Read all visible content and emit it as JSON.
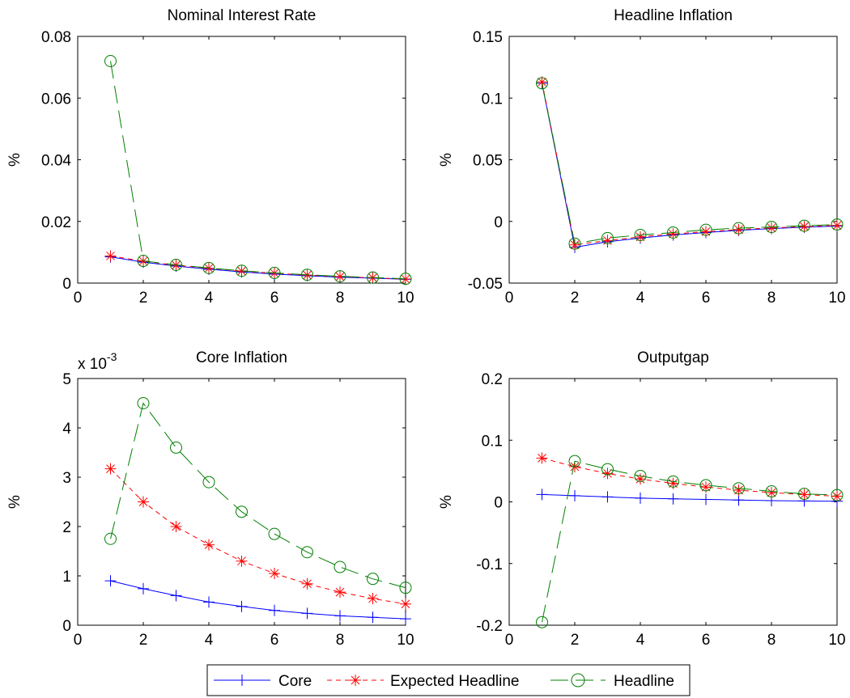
{
  "chart_data": [
    {
      "type": "line",
      "title": "Nominal Interest Rate",
      "xlabel": "",
      "ylabel": "%",
      "xlim": [
        0,
        10
      ],
      "ylim": [
        0,
        0.08
      ],
      "xticks": [
        0,
        2,
        4,
        6,
        8,
        10
      ],
      "yticks": [
        0,
        0.02,
        0.04,
        0.06,
        0.08
      ],
      "ytick_labels": [
        "0",
        "0.02",
        "0.04",
        "0.06",
        "0.08"
      ],
      "exponent_label": "",
      "x": [
        1,
        2,
        3,
        4,
        5,
        6,
        7,
        8,
        9,
        10
      ],
      "series": [
        {
          "name": "Core",
          "values": [
            0.0085,
            0.0068,
            0.0055,
            0.0045,
            0.0036,
            0.0029,
            0.0024,
            0.0019,
            0.0016,
            0.0012
          ]
        },
        {
          "name": "Expected Headline",
          "values": [
            0.0088,
            0.0071,
            0.0058,
            0.0048,
            0.0039,
            0.0032,
            0.0026,
            0.0021,
            0.0017,
            0.0013
          ]
        },
        {
          "name": "Headline",
          "values": [
            0.072,
            0.0072,
            0.0059,
            0.0049,
            0.004,
            0.0033,
            0.0027,
            0.0022,
            0.0018,
            0.0014
          ]
        }
      ]
    },
    {
      "type": "line",
      "title": "Headline Inflation",
      "xlabel": "",
      "ylabel": "%",
      "xlim": [
        0,
        10
      ],
      "ylim": [
        -0.05,
        0.15
      ],
      "xticks": [
        0,
        2,
        4,
        6,
        8,
        10
      ],
      "yticks": [
        -0.05,
        0,
        0.05,
        0.1,
        0.15
      ],
      "ytick_labels": [
        "-0.05",
        "0",
        "0.05",
        "0.1",
        "0.15"
      ],
      "exponent_label": "",
      "x": [
        1,
        2,
        3,
        4,
        5,
        6,
        7,
        8,
        9,
        10
      ],
      "series": [
        {
          "name": "Core",
          "values": [
            0.112,
            -0.021,
            -0.0165,
            -0.0135,
            -0.011,
            -0.009,
            -0.0072,
            -0.0058,
            -0.0047,
            -0.0038
          ]
        },
        {
          "name": "Expected Headline",
          "values": [
            0.113,
            -0.019,
            -0.0155,
            -0.0125,
            -0.0102,
            -0.0083,
            -0.0066,
            -0.0053,
            -0.0042,
            -0.0033
          ]
        },
        {
          "name": "Headline",
          "values": [
            0.112,
            -0.018,
            -0.0135,
            -0.011,
            -0.009,
            -0.0068,
            -0.0055,
            -0.0045,
            -0.0035,
            -0.0025
          ]
        }
      ]
    },
    {
      "type": "line",
      "title": "Core Inflation",
      "xlabel": "",
      "ylabel": "%",
      "xlim": [
        0,
        10
      ],
      "ylim": [
        0,
        0.005
      ],
      "xticks": [
        0,
        2,
        4,
        6,
        8,
        10
      ],
      "yticks": [
        0,
        0.001,
        0.002,
        0.003,
        0.004,
        0.005
      ],
      "ytick_labels": [
        "0",
        "1",
        "2",
        "3",
        "4",
        "5"
      ],
      "exponent_label": "x 10",
      "exponent_power": "-3",
      "x": [
        1,
        2,
        3,
        4,
        5,
        6,
        7,
        8,
        9,
        10
      ],
      "series": [
        {
          "name": "Core",
          "values": [
            0.0009,
            0.00074,
            0.0006,
            0.00047,
            0.00038,
            0.0003,
            0.00024,
            0.00019,
            0.00016,
            0.00013
          ]
        },
        {
          "name": "Expected Headline",
          "values": [
            0.00317,
            0.0025,
            0.002,
            0.00163,
            0.0013,
            0.00105,
            0.00084,
            0.00067,
            0.00054,
            0.00043
          ]
        },
        {
          "name": "Headline",
          "values": [
            0.00175,
            0.0045,
            0.0036,
            0.0029,
            0.0023,
            0.00185,
            0.00148,
            0.00118,
            0.00094,
            0.00076
          ]
        }
      ]
    },
    {
      "type": "line",
      "title": "Outputgap",
      "xlabel": "",
      "ylabel": "%",
      "xlim": [
        0,
        10
      ],
      "ylim": [
        -0.2,
        0.2
      ],
      "xticks": [
        0,
        2,
        4,
        6,
        8,
        10
      ],
      "yticks": [
        -0.2,
        -0.1,
        0,
        0.1,
        0.2
      ],
      "ytick_labels": [
        "-0.2",
        "-0.1",
        "0",
        "0.1",
        "0.2"
      ],
      "exponent_label": "",
      "x": [
        1,
        2,
        3,
        4,
        5,
        6,
        7,
        8,
        9,
        10
      ],
      "series": [
        {
          "name": "Core",
          "values": [
            0.012,
            0.01,
            0.008,
            0.006,
            0.005,
            0.004,
            0.003,
            0.002,
            0.0015,
            0.001
          ]
        },
        {
          "name": "Expected Headline",
          "values": [
            0.071,
            0.057,
            0.046,
            0.037,
            0.03,
            0.024,
            0.019,
            0.015,
            0.012,
            0.009
          ]
        },
        {
          "name": "Headline",
          "values": [
            -0.195,
            0.066,
            0.053,
            0.042,
            0.033,
            0.027,
            0.022,
            0.017,
            0.013,
            0.011
          ]
        }
      ]
    }
  ],
  "legend": {
    "placement": "bottom-center",
    "entries": [
      {
        "label": "Core",
        "color": "#0000ff",
        "line": "solid",
        "marker": "plus"
      },
      {
        "label": "Expected Headline",
        "color": "#ff0000",
        "line": "dashed",
        "marker": "star"
      },
      {
        "label": "Headline",
        "color": "#008000",
        "line": "long-dash",
        "marker": "circle"
      }
    ]
  },
  "series_styles": {
    "Core": {
      "color": "#0000ff",
      "dash": "",
      "marker": "plus"
    },
    "Expected Headline": {
      "color": "#ff0000",
      "dash": "6,5",
      "marker": "star"
    },
    "Headline": {
      "color": "#008000",
      "dash": "22,9",
      "marker": "circle"
    }
  }
}
